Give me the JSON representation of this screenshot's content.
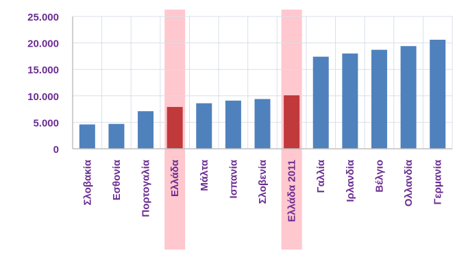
{
  "chart_data": {
    "type": "bar",
    "title": "",
    "xlabel": "",
    "ylabel": "",
    "categories": [
      "Σλοβακία",
      "Εσθονία",
      "Πορτογαλία",
      "Ελλάδα",
      "Μάλτα",
      "Ισπανία",
      "Σλοβενία",
      "Ελλάδα 2011",
      "Γαλλία",
      "Ιρλανδία",
      "Βέλγιο",
      "Ολλανδία",
      "Γερμανία"
    ],
    "values": [
      4600,
      4700,
      7100,
      7900,
      8600,
      9100,
      9400,
      10100,
      17400,
      18000,
      18700,
      19400,
      20600
    ],
    "highlighted": [
      "Ελλάδα",
      "Ελλάδα 2011"
    ],
    "ylim": [
      0,
      25000
    ],
    "yticks": [
      0,
      5000,
      10000,
      15000,
      20000,
      25000
    ],
    "ytick_labels": [
      "0",
      "5.000",
      "10.000",
      "15.000",
      "20.000",
      "25.000"
    ],
    "grid": true,
    "legend": "none",
    "colors": {
      "bar": "#4f81bd",
      "bar_highlight": "#c0393b",
      "highlight_band": "#ffc7ce",
      "label_text": "#6a2c91",
      "grid": "#d9dfe8",
      "axis": "#bfbfbf"
    }
  }
}
